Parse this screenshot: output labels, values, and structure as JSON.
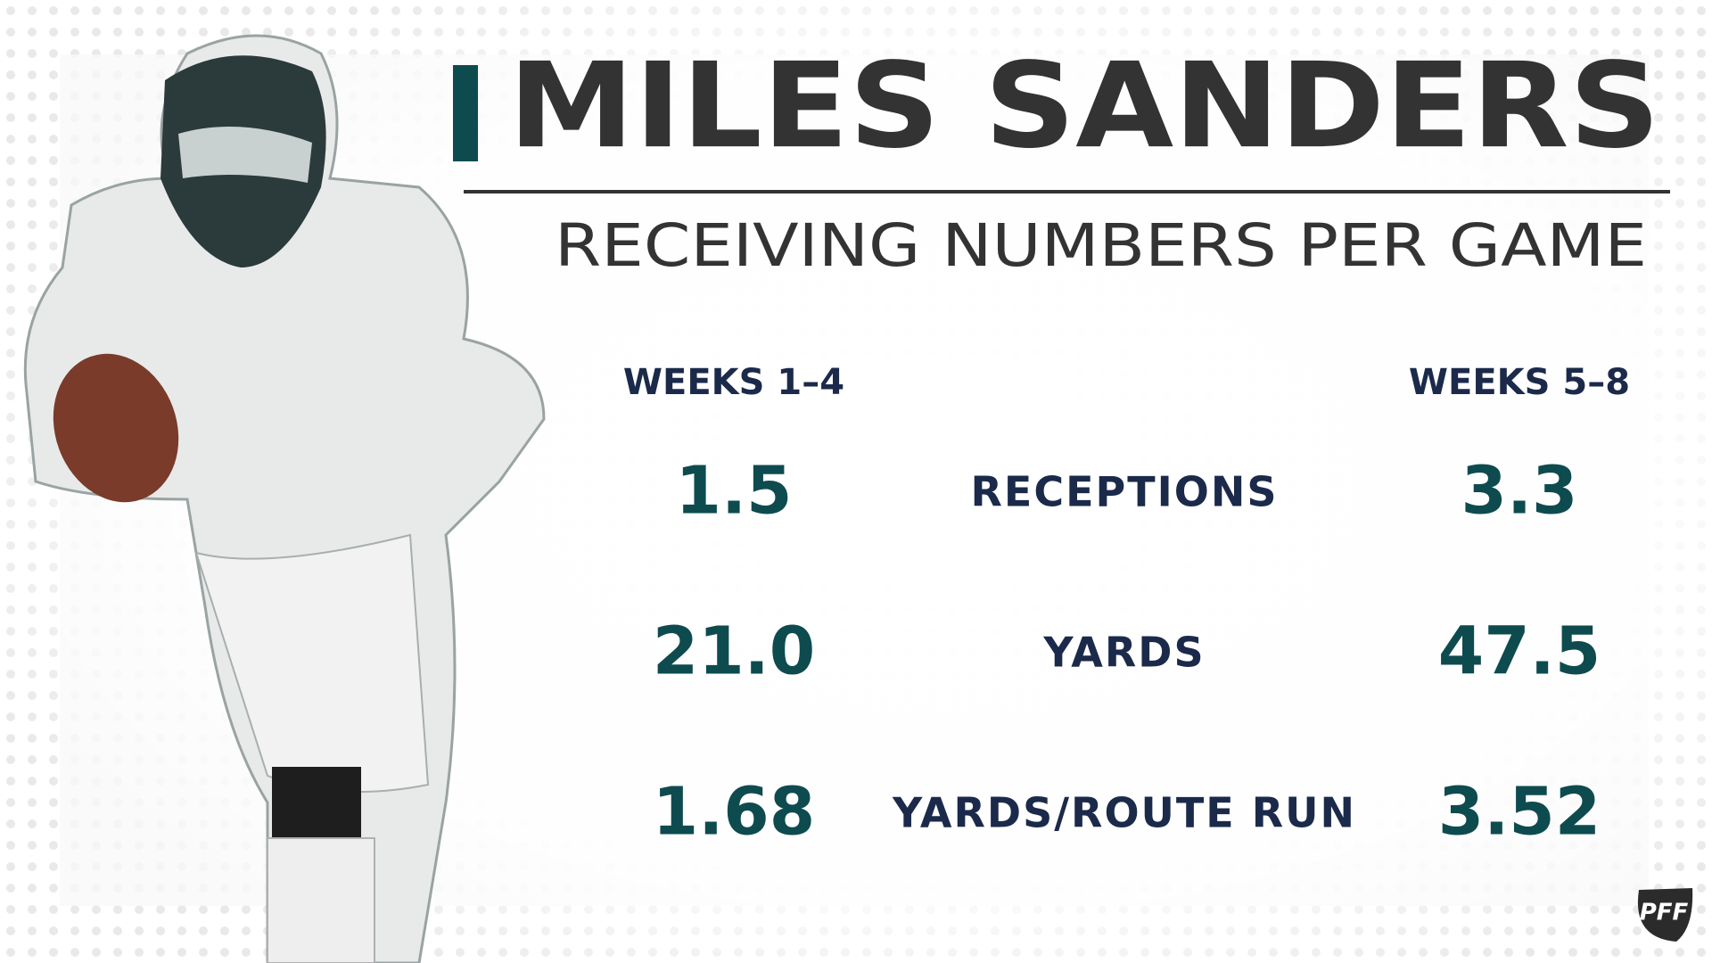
{
  "header": {
    "title": "MILES SANDERS",
    "subtitle": "RECEIVING NUMBERS PER GAME"
  },
  "table": {
    "columns": [
      "WEEKS 1–4",
      "WEEKS 5–8"
    ],
    "rows": [
      {
        "label": "RECEPTIONS",
        "values": [
          "1.5",
          "3.3"
        ]
      },
      {
        "label": "YARDS",
        "values": [
          "21.0",
          "47.5"
        ]
      },
      {
        "label": "YARDS/ROUTE RUN",
        "values": [
          "1.68",
          "3.52"
        ]
      }
    ]
  },
  "logo": "PFF"
}
